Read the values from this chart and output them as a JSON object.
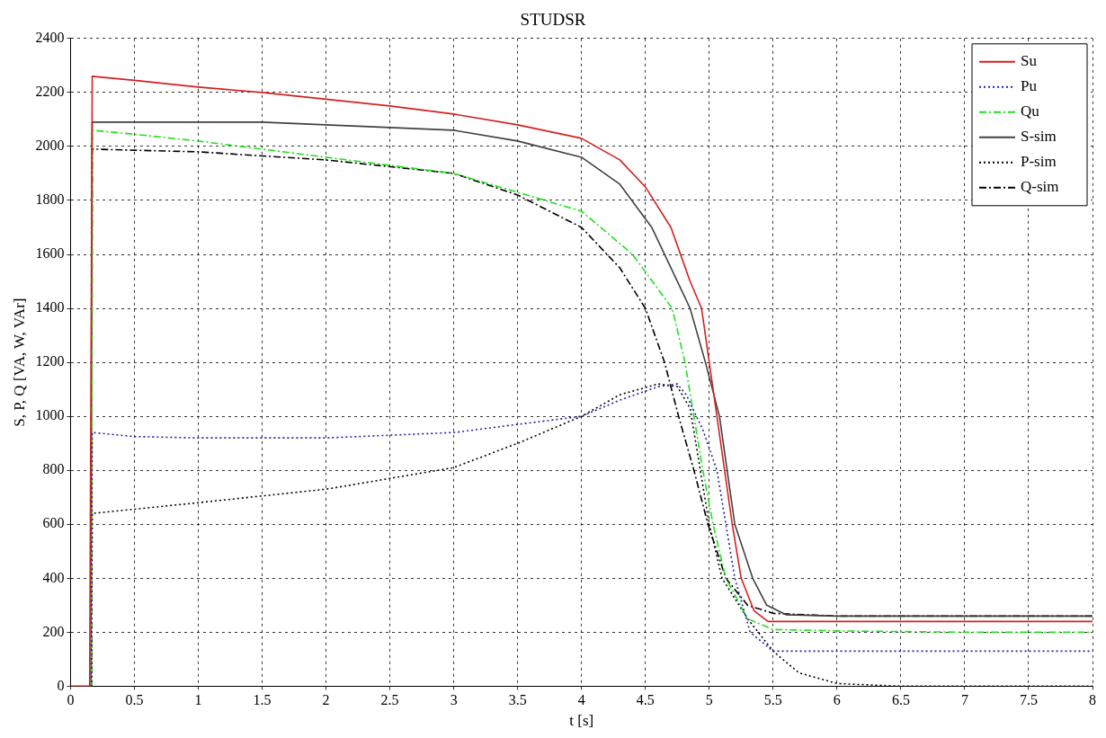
{
  "chart_data": {
    "type": "line",
    "title": "STUDSR",
    "xlabel": "t [s]",
    "ylabel": "S, P, Q [VA, W, VAr]",
    "xlim": [
      0,
      8
    ],
    "xticks": [
      0,
      0.5,
      1,
      1.5,
      2,
      2.5,
      3,
      3.5,
      4,
      4.5,
      5,
      5.5,
      6,
      6.5,
      7,
      7.5,
      8
    ],
    "ylim": [
      0,
      2400
    ],
    "yticks": [
      0,
      200,
      400,
      600,
      800,
      1000,
      1200,
      1400,
      1600,
      1800,
      2000,
      2200,
      2400
    ],
    "grid": true,
    "legend": "top right",
    "marker": "none",
    "series": [
      {
        "name": "Su",
        "color": "#d42020",
        "line_style": "solid",
        "x": [
          0,
          0.15,
          0.17,
          0.5,
          1,
          1.5,
          2,
          2.5,
          3,
          3.5,
          4,
          4.3,
          4.5,
          4.7,
          4.85,
          4.94,
          5.06,
          5.18,
          5.25,
          5.35,
          5.46,
          6,
          7,
          8
        ],
        "values": [
          0,
          0,
          2260,
          2245,
          2220,
          2200,
          2175,
          2150,
          2120,
          2080,
          2030,
          1950,
          1850,
          1700,
          1500,
          1400,
          1000,
          600,
          400,
          280,
          240,
          240,
          240,
          240
        ]
      },
      {
        "name": "Pu",
        "color": "#2020b0",
        "line_style": "dotted",
        "x": [
          0.16,
          0.165,
          0.17,
          0.5,
          1,
          2,
          2.5,
          3,
          3.5,
          4,
          4.3,
          4.6,
          4.75,
          4.82,
          4.95,
          5.06,
          5.13,
          5.2,
          5.32,
          5.5,
          6,
          7,
          8
        ],
        "values": [
          0,
          0,
          940,
          925,
          920,
          920,
          930,
          940,
          970,
          1000,
          1060,
          1110,
          1120,
          1080,
          950,
          800,
          600,
          400,
          200,
          130,
          130,
          130,
          130
        ]
      },
      {
        "name": "Qu",
        "color": "#20e020",
        "line_style": "dashdot",
        "x": [
          0.16,
          0.165,
          0.17,
          0.5,
          1,
          2,
          3,
          3.5,
          4,
          4.4,
          4.71,
          4.81,
          4.88,
          4.95,
          5.03,
          5.13,
          5.3,
          5.5,
          6,
          7,
          8
        ],
        "values": [
          0,
          0,
          2060,
          2045,
          2020,
          1960,
          1900,
          1830,
          1760,
          1600,
          1400,
          1200,
          1000,
          800,
          600,
          400,
          250,
          210,
          205,
          200,
          200
        ]
      },
      {
        "name": "S-sim",
        "color": "#404040",
        "line_style": "solid",
        "x": [
          0.16,
          0.165,
          0.17,
          0.5,
          1,
          1.5,
          2,
          3,
          3.5,
          4,
          4.3,
          4.55,
          4.85,
          4.97,
          5.08,
          5.2,
          5.34,
          5.45,
          5.6,
          6,
          7,
          8
        ],
        "values": [
          0,
          0,
          2090,
          2090,
          2090,
          2090,
          2080,
          2060,
          2020,
          1960,
          1860,
          1700,
          1400,
          1200,
          1000,
          600,
          400,
          300,
          265,
          260,
          260,
          260
        ]
      },
      {
        "name": "P-sim",
        "color": "#000000",
        "line_style": "dotted",
        "x": [
          0.16,
          0.165,
          0.17,
          1,
          2,
          3,
          3.5,
          4,
          4.3,
          4.6,
          4.75,
          4.85,
          4.93,
          5,
          5.1,
          5.3,
          5.5,
          5.7,
          6,
          6.5,
          8
        ],
        "values": [
          0,
          0,
          640,
          680,
          730,
          810,
          900,
          1000,
          1080,
          1120,
          1110,
          1030,
          800,
          600,
          400,
          250,
          130,
          50,
          10,
          0,
          0
        ]
      },
      {
        "name": "Q-sim",
        "color": "#000000",
        "line_style": "dashdot",
        "x": [
          0.16,
          0.165,
          0.17,
          1,
          2,
          3,
          3.5,
          4,
          4.3,
          4.5,
          4.65,
          4.76,
          4.88,
          4.99,
          5.13,
          5.3,
          5.5,
          6,
          7,
          8
        ],
        "values": [
          0,
          0,
          1990,
          1980,
          1950,
          1900,
          1820,
          1700,
          1550,
          1400,
          1200,
          1000,
          800,
          600,
          400,
          300,
          270,
          260,
          260,
          260
        ]
      }
    ]
  }
}
